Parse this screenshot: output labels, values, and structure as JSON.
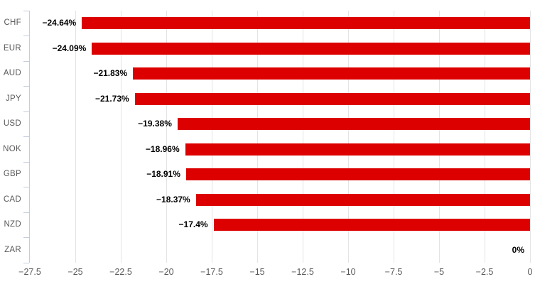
{
  "chart_data": {
    "type": "bar",
    "orientation": "horizontal",
    "title": "",
    "categories": [
      "CHF",
      "EUR",
      "AUD",
      "JPY",
      "USD",
      "NOK",
      "GBP",
      "CAD",
      "NZD",
      "ZAR"
    ],
    "values": [
      -24.64,
      -24.09,
      -21.83,
      -21.73,
      -19.38,
      -18.96,
      -18.91,
      -18.37,
      -17.4,
      0
    ],
    "value_labels": [
      "−24.64%",
      "−24.09%",
      "−21.83%",
      "−21.73%",
      "−19.38%",
      "−18.96%",
      "−18.91%",
      "−18.37%",
      "−17.4%",
      "0%"
    ],
    "x_ticks": [
      -27.5,
      -25,
      -22.5,
      -20,
      -17.5,
      -15,
      -12.5,
      -10,
      -7.5,
      -5,
      -2.5,
      0
    ],
    "x_tick_labels": [
      "−27.5",
      "−25",
      "−22.5",
      "−20",
      "−17.5",
      "−15",
      "−12.5",
      "−10",
      "−7.5",
      "−5",
      "−2.5",
      "0"
    ],
    "xlim": [
      -27.5,
      0
    ],
    "xlabel": "",
    "ylabel": "",
    "grid": "vertical",
    "legend": false,
    "colors": {
      "bar": "#dc0000",
      "gridline": "#e4e4e4",
      "axis_line": "#c3cdde",
      "category_label": "#595959",
      "tick_label": "#595959",
      "value_label": "#000000",
      "background": "#ffffff"
    }
  }
}
